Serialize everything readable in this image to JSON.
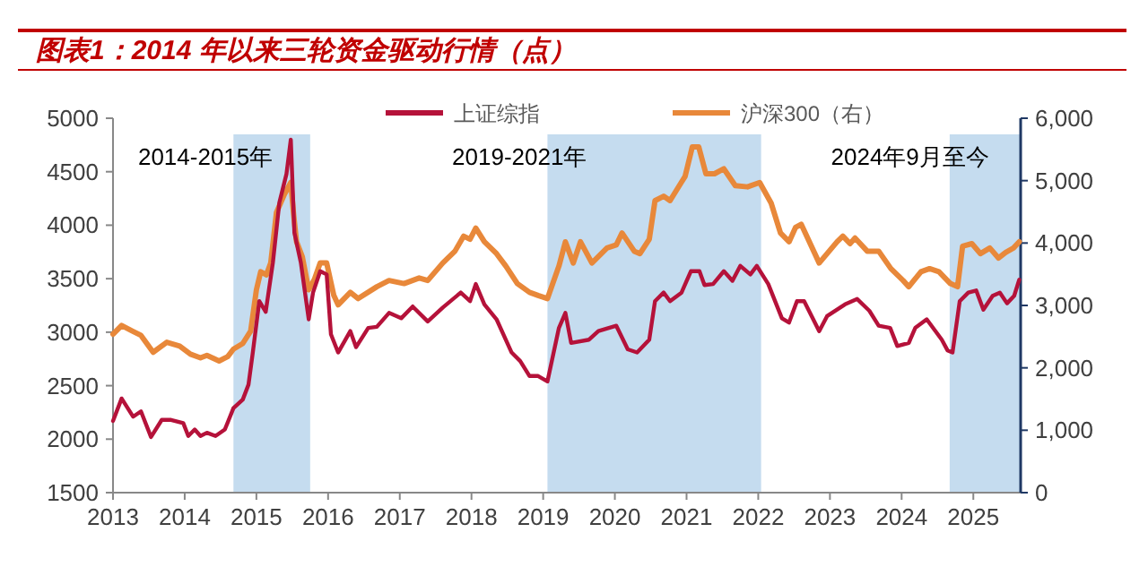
{
  "chart_data": {
    "type": "line",
    "title": "图表1：2014 年以来三轮资金驱动行情（点）",
    "legend": "top",
    "xlim": [
      2013,
      2025.66
    ],
    "xticks": [
      2013,
      2014,
      2015,
      2016,
      2017,
      2018,
      2019,
      2020,
      2021,
      2022,
      2023,
      2024,
      2025
    ],
    "ylim": [
      1500,
      5000
    ],
    "yticks": [
      1500,
      2000,
      2500,
      3000,
      3500,
      4000,
      4500,
      5000
    ],
    "y2lim": [
      0,
      6000
    ],
    "y2ticks": [
      0,
      {
        "value": 1000,
        "label": "1,000"
      },
      {
        "value": 2000,
        "label": "2,000"
      },
      {
        "value": 3000,
        "label": "3,000"
      },
      {
        "value": 4000,
        "label": "4,000"
      },
      {
        "value": 5000,
        "label": "5,000"
      },
      {
        "value": 6000,
        "label": "6,000"
      }
    ],
    "bands": [
      {
        "axis": "x",
        "from": 2014.68,
        "to": 2015.75,
        "label": "2014-2015年",
        "color": "#c5dcef"
      },
      {
        "axis": "x",
        "from": 2019.06,
        "to": 2022.04,
        "label": "2019-2021年",
        "color": "#c5dcef"
      },
      {
        "axis": "x",
        "from": 2024.67,
        "to": 2025.66,
        "label": "2024年9月至今",
        "color": "#c5dcef"
      }
    ],
    "series": [
      {
        "name": "上证综指",
        "color": "#b5123a",
        "axis": "y",
        "x": [
          2013.0,
          2013.12,
          2013.28,
          2013.39,
          2013.53,
          2013.68,
          2013.81,
          2013.98,
          2014.05,
          2014.14,
          2014.22,
          2014.31,
          2014.43,
          2014.56,
          2014.68,
          2014.81,
          2014.89,
          2014.95,
          2015.04,
          2015.13,
          2015.23,
          2015.32,
          2015.42,
          2015.48,
          2015.53,
          2015.62,
          2015.73,
          2015.79,
          2015.89,
          2015.98,
          2016.04,
          2016.14,
          2016.31,
          2016.39,
          2016.56,
          2016.68,
          2016.85,
          2017.02,
          2017.18,
          2017.39,
          2017.6,
          2017.85,
          2017.98,
          2018.06,
          2018.18,
          2018.35,
          2018.56,
          2018.68,
          2018.81,
          2018.93,
          2019.06,
          2019.22,
          2019.31,
          2019.39,
          2019.64,
          2019.77,
          2020.02,
          2020.18,
          2020.31,
          2020.48,
          2020.56,
          2020.68,
          2020.77,
          2020.93,
          2021.06,
          2021.18,
          2021.25,
          2021.37,
          2021.52,
          2021.64,
          2021.75,
          2021.89,
          2021.98,
          2022.14,
          2022.33,
          2022.43,
          2022.54,
          2022.64,
          2022.85,
          2022.96,
          2023.21,
          2023.38,
          2023.55,
          2023.68,
          2023.84,
          2023.94,
          2024.1,
          2024.19,
          2024.35,
          2024.56,
          2024.64,
          2024.71,
          2024.81,
          2024.93,
          2025.04,
          2025.14,
          2025.27,
          2025.37,
          2025.47,
          2025.57,
          2025.64
        ],
        "values": [
          2170,
          2380,
          2210,
          2260,
          2020,
          2180,
          2180,
          2150,
          2030,
          2090,
          2030,
          2060,
          2030,
          2090,
          2290,
          2370,
          2510,
          2810,
          3290,
          3190,
          3650,
          4210,
          4480,
          4800,
          3930,
          3650,
          3120,
          3370,
          3570,
          3540,
          2980,
          2810,
          3010,
          2860,
          3040,
          3050,
          3180,
          3130,
          3240,
          3100,
          3230,
          3370,
          3290,
          3450,
          3260,
          3120,
          2810,
          2730,
          2590,
          2590,
          2540,
          3040,
          3180,
          2900,
          2930,
          3010,
          3060,
          2840,
          2810,
          2930,
          3290,
          3370,
          3290,
          3370,
          3570,
          3570,
          3440,
          3450,
          3570,
          3480,
          3620,
          3540,
          3620,
          3450,
          3130,
          3090,
          3290,
          3290,
          3010,
          3150,
          3260,
          3310,
          3200,
          3060,
          3040,
          2870,
          2900,
          3040,
          3120,
          2930,
          2830,
          2810,
          3290,
          3370,
          3390,
          3210,
          3340,
          3370,
          3270,
          3340,
          3490
        ]
      },
      {
        "name": "沪深300（右）",
        "color": "#e8883a",
        "axis": "y2",
        "x": [
          2013.0,
          2013.12,
          2013.27,
          2013.39,
          2013.56,
          2013.75,
          2013.93,
          2014.08,
          2014.22,
          2014.31,
          2014.48,
          2014.6,
          2014.68,
          2014.81,
          2014.92,
          2015.0,
          2015.06,
          2015.14,
          2015.2,
          2015.28,
          2015.39,
          2015.48,
          2015.52,
          2015.56,
          2015.64,
          2015.73,
          2015.81,
          2015.89,
          2015.98,
          2016.08,
          2016.14,
          2016.31,
          2016.42,
          2016.68,
          2016.85,
          2017.06,
          2017.27,
          2017.39,
          2017.6,
          2017.77,
          2017.89,
          2017.98,
          2018.06,
          2018.18,
          2018.35,
          2018.48,
          2018.64,
          2018.81,
          2018.93,
          2019.06,
          2019.22,
          2019.31,
          2019.42,
          2019.52,
          2019.68,
          2019.89,
          2020.02,
          2020.1,
          2020.27,
          2020.35,
          2020.48,
          2020.56,
          2020.68,
          2020.77,
          2020.98,
          2021.08,
          2021.17,
          2021.27,
          2021.39,
          2021.52,
          2021.68,
          2021.85,
          2022.02,
          2022.18,
          2022.31,
          2022.43,
          2022.52,
          2022.6,
          2022.85,
          2023.1,
          2023.18,
          2023.28,
          2023.35,
          2023.52,
          2023.68,
          2023.85,
          2024.02,
          2024.1,
          2024.27,
          2024.39,
          2024.52,
          2024.68,
          2024.78,
          2024.85,
          2024.98,
          2025.1,
          2025.23,
          2025.35,
          2025.45,
          2025.56,
          2025.64
        ],
        "values": [
          2540,
          2680,
          2590,
          2520,
          2250,
          2410,
          2350,
          2220,
          2160,
          2200,
          2110,
          2180,
          2300,
          2390,
          2590,
          3250,
          3540,
          3490,
          3680,
          4490,
          4780,
          4970,
          4450,
          4020,
          3780,
          3250,
          3420,
          3680,
          3680,
          3160,
          3010,
          3210,
          3110,
          3300,
          3400,
          3350,
          3440,
          3400,
          3680,
          3870,
          4110,
          4060,
          4240,
          4020,
          3830,
          3630,
          3350,
          3210,
          3160,
          3110,
          3630,
          4020,
          3680,
          4020,
          3680,
          3920,
          3970,
          4160,
          3870,
          3830,
          4060,
          4680,
          4750,
          4680,
          5070,
          5540,
          5540,
          5110,
          5110,
          5190,
          4920,
          4900,
          4970,
          4640,
          4160,
          4020,
          4250,
          4300,
          3680,
          4020,
          4110,
          3990,
          4080,
          3870,
          3870,
          3590,
          3400,
          3300,
          3540,
          3590,
          3540,
          3350,
          3300,
          3950,
          3990,
          3830,
          3920,
          3760,
          3850,
          3920,
          4020
        ]
      }
    ]
  }
}
